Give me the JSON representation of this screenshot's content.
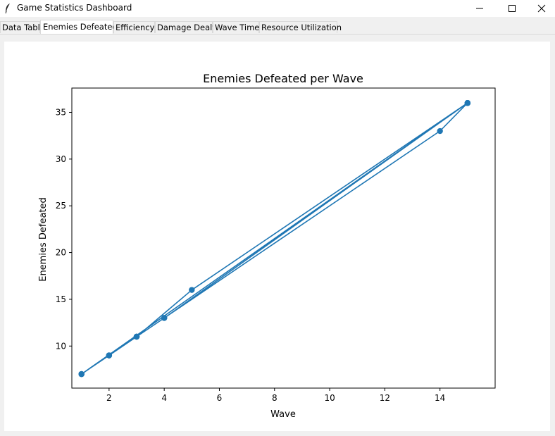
{
  "window": {
    "title": "Game Statistics Dashboard"
  },
  "tabs": [
    {
      "label": "Data Table"
    },
    {
      "label": "Enemies Defeated",
      "active": true
    },
    {
      "label": "Efficiency"
    },
    {
      "label": "Damage Dealt"
    },
    {
      "label": "Wave Time"
    },
    {
      "label": "Resource Utilization"
    }
  ],
  "chart_data": {
    "type": "line",
    "title": "Enemies Defeated per Wave",
    "xlabel": "Wave",
    "ylabel": "Enemies Defeated",
    "xlim": [
      0.65,
      16.0
    ],
    "ylim": [
      5.5,
      37.6
    ],
    "xticks": [
      2,
      4,
      6,
      8,
      10,
      12,
      14
    ],
    "yticks": [
      10,
      15,
      20,
      25,
      30,
      35
    ],
    "grid": false,
    "color": "#1f77b4",
    "series": [
      {
        "x": [
          1,
          2,
          3,
          4,
          15,
          1,
          2,
          3,
          5,
          15,
          1,
          2,
          3,
          4,
          14,
          15,
          1,
          2,
          3,
          4,
          15
        ],
        "y": [
          7,
          9,
          11,
          13,
          36,
          7,
          9,
          11,
          16,
          36,
          7,
          9,
          11,
          13,
          33,
          36,
          7,
          9,
          11,
          13,
          36
        ]
      }
    ]
  }
}
